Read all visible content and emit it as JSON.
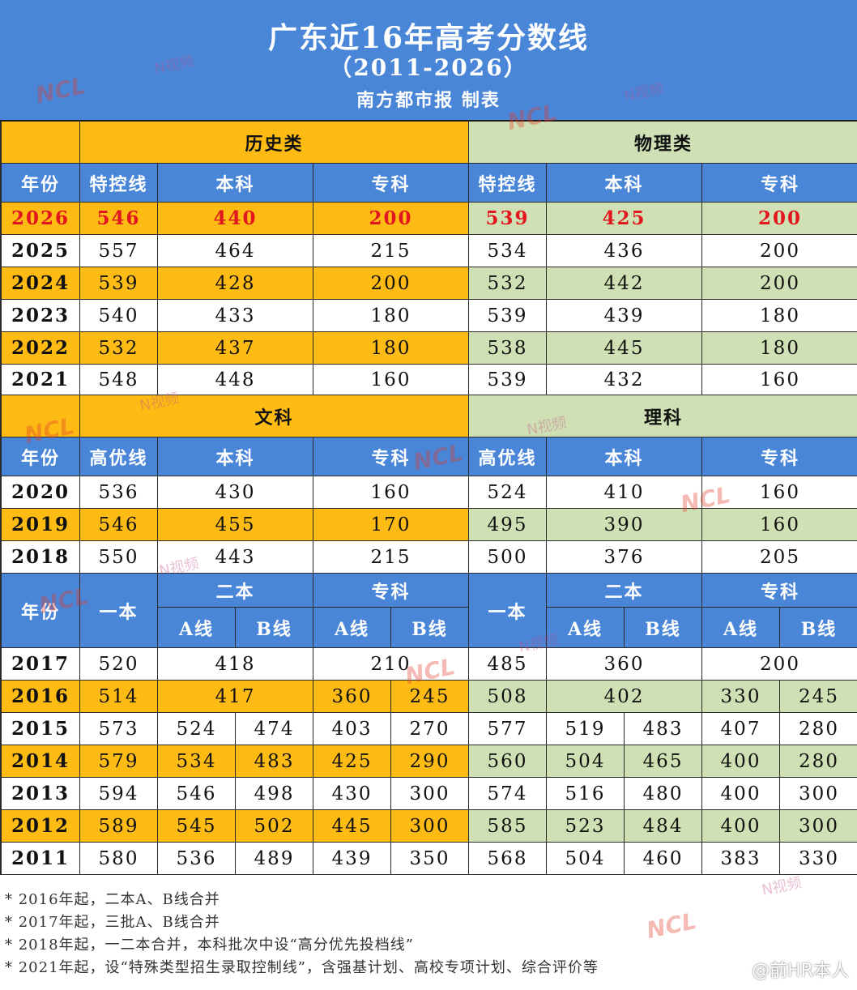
{
  "header": {
    "title": "广东近16年高考分数线",
    "years": "（2011-2026）",
    "credit": "南方都市报 制表"
  },
  "colors": {
    "header_blue": "#4a86d8",
    "history_orange": "#fdbb14",
    "physics_green": "#cfe0b4",
    "highlight_red": "#e2161e"
  },
  "section1": {
    "left_title": "历史类",
    "right_title": "物理类",
    "col_headers": [
      "年份",
      "特控线",
      "本科",
      "专科",
      "特控线",
      "本科",
      "专科"
    ],
    "rows": [
      {
        "year": "2026",
        "vals": [
          "546",
          "440",
          "200",
          "539",
          "425",
          "200"
        ]
      },
      {
        "year": "2025",
        "vals": [
          "557",
          "464",
          "215",
          "534",
          "436",
          "200"
        ]
      },
      {
        "year": "2024",
        "vals": [
          "539",
          "428",
          "200",
          "532",
          "442",
          "200"
        ]
      },
      {
        "year": "2023",
        "vals": [
          "540",
          "433",
          "180",
          "539",
          "439",
          "180"
        ]
      },
      {
        "year": "2022",
        "vals": [
          "532",
          "437",
          "180",
          "538",
          "445",
          "180"
        ]
      },
      {
        "year": "2021",
        "vals": [
          "548",
          "448",
          "160",
          "539",
          "432",
          "160"
        ]
      }
    ]
  },
  "section2": {
    "left_title": "文科",
    "right_title": "理科",
    "col_headers": [
      "年份",
      "高优线",
      "本科",
      "专科",
      "高优线",
      "本科",
      "专科"
    ],
    "rows": [
      {
        "year": "2020",
        "vals": [
          "536",
          "430",
          "160",
          "524",
          "410",
          "160"
        ]
      },
      {
        "year": "2019",
        "vals": [
          "546",
          "455",
          "170",
          "495",
          "390",
          "160"
        ]
      },
      {
        "year": "2018",
        "vals": [
          "550",
          "443",
          "215",
          "500",
          "376",
          "205"
        ]
      }
    ]
  },
  "section3": {
    "headers": {
      "year": "年份",
      "yiben": "一本",
      "erben": "二本",
      "zhuanke": "专科",
      "a_line": "A线",
      "b_line": "B线"
    },
    "rows": [
      {
        "year": "2017",
        "left": [
          "520",
          "418",
          "210"
        ],
        "right": [
          "485",
          "360",
          "200"
        ]
      },
      {
        "year": "2016",
        "left": [
          "514",
          "417",
          "360",
          "245"
        ],
        "right": [
          "508",
          "402",
          "330",
          "245"
        ]
      },
      {
        "year": "2015",
        "left": [
          "573",
          "524",
          "474",
          "403",
          "270"
        ],
        "right": [
          "577",
          "519",
          "483",
          "407",
          "280"
        ]
      },
      {
        "year": "2014",
        "left": [
          "579",
          "534",
          "483",
          "425",
          "290"
        ],
        "right": [
          "560",
          "504",
          "465",
          "400",
          "280"
        ]
      },
      {
        "year": "2013",
        "left": [
          "594",
          "546",
          "498",
          "430",
          "300"
        ],
        "right": [
          "574",
          "516",
          "480",
          "400",
          "300"
        ]
      },
      {
        "year": "2012",
        "left": [
          "589",
          "545",
          "502",
          "445",
          "300"
        ],
        "right": [
          "585",
          "523",
          "484",
          "400",
          "300"
        ]
      },
      {
        "year": "2011",
        "left": [
          "580",
          "536",
          "489",
          "439",
          "350"
        ],
        "right": [
          "568",
          "504",
          "460",
          "383",
          "330"
        ]
      }
    ]
  },
  "notes": [
    "* 2016年起，二本A、B线合并",
    "* 2017年起，三批A、B线合并",
    "* 2018年起，一二本合并，本科批次中设“高分优先投档线”",
    "* 2021年起，设“特殊类型招生录取控制线”，含强基计划、高校专项计划、综合评价等"
  ],
  "watermarks": {
    "ncl": "NCL",
    "nvideo": "N视频",
    "credit": "@前HR本人"
  }
}
